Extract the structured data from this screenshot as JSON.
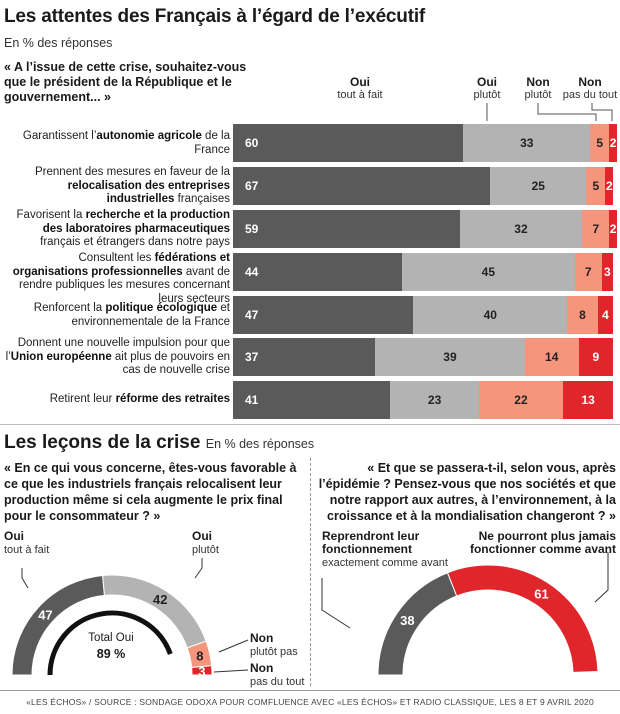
{
  "header": {
    "title": "Les attentes des Français à l’égard de l’exécutif",
    "subtitle": "En % des réponses",
    "question": "« A l’issue de cette crise, souhaitez-vous que le président de la République et le gouvernement... »"
  },
  "legend": {
    "oui_tf": {
      "main": "Oui",
      "sub": "tout à fait"
    },
    "oui_pl": {
      "main": "Oui",
      "sub": "plutôt"
    },
    "non_pl": {
      "main": "Non",
      "sub": "plutôt"
    },
    "non_pdt": {
      "main": "Non",
      "sub": "pas du tout"
    }
  },
  "colors": {
    "oui_tout_a_fait": "#5a5a5a",
    "oui_plutot": "#b3b3b3",
    "non_plutot": "#f4957c",
    "non_pas_du_tout": "#e0262b"
  },
  "rows": [
    {
      "pre": "Garantissent l’",
      "bold": "autonomie agricole",
      "post": " de la France"
    },
    {
      "pre": "Prennent des mesures en faveur de la ",
      "bold": "relocalisation des entreprises industrielles",
      "post": " françaises"
    },
    {
      "pre": "Favorisent la ",
      "bold": "recherche et la production des laboratoires pharmaceutiques",
      "post": " français et étrangers dans notre pays"
    },
    {
      "pre": "Consultent les ",
      "bold": "fédérations et organisations professionnelles",
      "post": " avant de rendre publiques les mesures concernant leurs secteurs"
    },
    {
      "pre": "Renforcent la ",
      "bold": "politique écologique",
      "post": " et environnementale de la France"
    },
    {
      "pre": "Donnent une nouvelle impulsion pour que l’",
      "bold": "Union européenne",
      "post": " ait plus de pouvoirs en cas de nouvelle crise"
    },
    {
      "pre": "Retirent leur ",
      "bold": "réforme des retraites",
      "post": ""
    }
  ],
  "chart_data": [
    {
      "type": "bar",
      "orientation": "horizontal-stacked",
      "title": "Les attentes des Français à l’égard de l’exécutif",
      "unit": "% des réponses",
      "categories": [
        "Garantissent l’autonomie agricole de la France",
        "Prennent des mesures en faveur de la relocalisation des entreprises industrielles françaises",
        "Favorisent la recherche et la production des laboratoires pharmaceutiques français et étrangers dans notre pays",
        "Consultent les fédérations et organisations professionnelles avant de rendre publiques les mesures concernant leurs secteurs",
        "Renforcent la politique écologique et environnementale de la France",
        "Donnent une nouvelle impulsion pour que l’Union européenne ait plus de pouvoirs en cas de nouvelle crise",
        "Retirent leur réforme des retraites"
      ],
      "series": [
        {
          "name": "Oui tout à fait",
          "values": [
            60,
            67,
            59,
            44,
            47,
            37,
            41
          ]
        },
        {
          "name": "Oui plutôt",
          "values": [
            33,
            25,
            32,
            45,
            40,
            39,
            23
          ]
        },
        {
          "name": "Non plutôt",
          "values": [
            5,
            5,
            7,
            7,
            8,
            14,
            22
          ]
        },
        {
          "name": "Non pas du tout",
          "values": [
            2,
            2,
            2,
            3,
            4,
            9,
            13
          ]
        }
      ]
    },
    {
      "type": "pie",
      "shape": "half-donut",
      "title": "« En ce qui vous concerne, êtes-vous favorable à ce que les industriels français relocalisent leur production même si cela augmente le prix final pour le consommateur ? »",
      "labels": [
        "Oui tout à fait",
        "Oui plutôt",
        "Non plutôt pas",
        "Non pas du tout"
      ],
      "values": [
        47,
        42,
        8,
        3
      ],
      "annotation": {
        "label": "Total Oui",
        "value": "89 %"
      }
    },
    {
      "type": "pie",
      "shape": "half-donut",
      "title": "« Et que se passera-t-il, selon vous, après l’épidémie ? Pensez-vous que nos sociétés et que notre rapport aux autres, à l’environnement, à la croissance et à la mondialisation changeront ? »",
      "labels": [
        "Reprendront leur fonctionnement exactement comme avant",
        "Ne pourront plus jamais fonctionner comme avant"
      ],
      "values": [
        38,
        61
      ]
    }
  ],
  "section2": {
    "title": "Les leçons de la crise",
    "subtitle": "En % des réponses",
    "q_left": "« En ce qui vous concerne, êtes-vous favorable à ce que les industriels français relocalisent leur production même si cela augmente le prix final pour le consommateur ? »",
    "q_right": "« Et que se passera-t-il, selon vous, après l’épidémie ? Pensez-vous que nos sociétés et que notre rapport aux autres, à l’environnement, à la croissance et à la mondialisation changeront ? »",
    "left_labels": {
      "oui_tf_main": "Oui",
      "oui_tf_sub": "tout à fait",
      "oui_pl_main": "Oui",
      "oui_pl_sub": "plutôt",
      "non_pl_main": "Non",
      "non_pl_sub": "plutôt pas",
      "non_pdt_main": "Non",
      "non_pdt_sub": "pas du tout",
      "total_label": "Total Oui",
      "total_value": "89 %"
    },
    "right_labels": {
      "reprendront_main": "Reprendront leur fonctionnement",
      "reprendront_sub": "exactement comme avant",
      "jamais_main": "Ne pourront plus jamais fonctionner comme avant"
    }
  },
  "footer": "«LES ÉCHOS» / SOURCE : SONDAGE ODOXA POUR COMFLUENCE AVEC «LES ÉCHOS» ET RADIO CLASSIQUE, LES 8 ET 9 AVRIL 2020"
}
